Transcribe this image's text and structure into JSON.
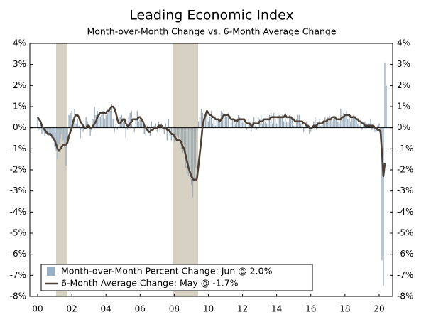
{
  "chart_data": {
    "type": "bar",
    "title": "Leading Economic Index",
    "subtitle": "Month-over-Month Change vs. 6-Month Average Change",
    "categories": [
      "00",
      null,
      null,
      null,
      null,
      null,
      null,
      null,
      null,
      null,
      null,
      null,
      null,
      null,
      null,
      null,
      null,
      null,
      null,
      null,
      null,
      null,
      null,
      null,
      "02",
      null,
      null,
      null,
      null,
      null,
      null,
      null,
      null,
      null,
      null,
      null,
      null,
      null,
      null,
      null,
      null,
      null,
      null,
      null,
      null,
      null,
      null,
      null,
      "04",
      null,
      null,
      null,
      null,
      null,
      null,
      null,
      null,
      null,
      null,
      null,
      null,
      null,
      null,
      null,
      null,
      null,
      null,
      null,
      null,
      null,
      null,
      null,
      "06",
      null,
      null,
      null,
      null,
      null,
      null,
      null,
      null,
      null,
      null,
      null,
      null,
      null,
      null,
      null,
      null,
      null,
      null,
      null,
      null,
      null,
      null,
      null,
      "08",
      null,
      null,
      null,
      null,
      null,
      null,
      null,
      null,
      null,
      null,
      null,
      null,
      null,
      null,
      null,
      null,
      null,
      null,
      null,
      null,
      null,
      null,
      null,
      "10",
      null,
      null,
      null,
      null,
      null,
      null,
      null,
      null,
      null,
      null,
      null,
      null,
      null,
      null,
      null,
      null,
      null,
      null,
      null,
      null,
      null,
      null,
      null,
      "12",
      null,
      null,
      null,
      null,
      null,
      null,
      null,
      null,
      null,
      null,
      null,
      null,
      null,
      null,
      null,
      null,
      null,
      null,
      null,
      null,
      null,
      null,
      null,
      "14",
      null,
      null,
      null,
      null,
      null,
      null,
      null,
      null,
      null,
      null,
      null,
      null,
      null,
      null,
      null,
      null,
      null,
      null,
      null,
      null,
      null,
      null,
      null,
      "16",
      null,
      null,
      null,
      null,
      null,
      null,
      null,
      null,
      null,
      null,
      null,
      null,
      null,
      null,
      null,
      null,
      null,
      null,
      null,
      null,
      null,
      null,
      null,
      "18",
      null,
      null,
      null,
      null,
      null,
      null,
      null,
      null,
      null,
      null,
      null,
      null,
      null,
      null,
      null,
      null,
      null,
      null,
      null,
      null,
      null,
      null,
      null,
      "20",
      null,
      null,
      null,
      null,
      null
    ],
    "series": [
      {
        "name": "Month-over-Month Percent Change: Jun @ 2.0%",
        "type": "bar",
        "color": "#98b0c6",
        "values": [
          0.5,
          -0.1,
          0.2,
          -0.3,
          -0.2,
          -0.4,
          -0.3,
          -0.2,
          -0.4,
          -0.3,
          -0.5,
          -0.6,
          -0.9,
          -1.1,
          -1.5,
          -0.8,
          -0.5,
          -0.3,
          -0.6,
          -0.9,
          -1.8,
          -0.5,
          0.6,
          0.7,
          0.8,
          0.4,
          0.9,
          0.2,
          0.4,
          0.1,
          -0.5,
          -0.1,
          -0.2,
          0.1,
          0.5,
          0.3,
          0.2,
          -0.4,
          -0.2,
          0.4,
          1.0,
          0.6,
          0.8,
          0.7,
          0.5,
          0.6,
          0.8,
          0.4,
          0.6,
          0.7,
          0.9,
          0.8,
          1.1,
          0.4,
          -0.2,
          0.2,
          -0.1,
          0.1,
          0.5,
          0.6,
          0.3,
          0.4,
          -0.5,
          -0.1,
          0.5,
          0.7,
          0.8,
          0.1,
          -0.2,
          0.4,
          0.8,
          0.3,
          0.4,
          0.3,
          0.2,
          -0.3,
          -0.4,
          0.1,
          -0.2,
          -0.4,
          0.3,
          -0.1,
          0.1,
          0.2,
          -0.2,
          0.3,
          -0.2,
          0.2,
          0.1,
          -0.3,
          0.2,
          -0.6,
          0.4,
          -0.4,
          -0.6,
          -0.4,
          -0.7,
          -0.6,
          -0.4,
          -0.5,
          -0.3,
          -1.0,
          -1.2,
          -0.8,
          -1.9,
          -2.2,
          -2.3,
          -1.9,
          -2.7,
          -3.3,
          -2.5,
          -1.9,
          -0.5,
          0.3,
          0.5,
          0.9,
          0.7,
          0.4,
          0.6,
          0.8,
          0.3,
          0.5,
          0.8,
          0.2,
          0.6,
          0.1,
          0.4,
          0.4,
          0.3,
          0.8,
          0.7,
          0.7,
          0.6,
          0.5,
          0.7,
          0.0,
          0.3,
          0.4,
          0.4,
          0.2,
          0.3,
          0.6,
          0.5,
          0.4,
          0.3,
          0.3,
          0.2,
          -0.1,
          0.4,
          0.2,
          -0.2,
          0.3,
          0.5,
          0.1,
          -0.1,
          0.5,
          0.4,
          0.6,
          0.2,
          0.4,
          0.3,
          0.2,
          0.5,
          0.6,
          0.7,
          0.2,
          0.7,
          0.4,
          0.2,
          0.7,
          0.6,
          0.5,
          0.6,
          0.3,
          0.7,
          0.3,
          0.3,
          0.6,
          0.4,
          0.5,
          0.1,
          0.1,
          0.4,
          0.6,
          0.6,
          0.2,
          0.2,
          -0.2,
          0.2,
          0.3,
          0.1,
          -0.3,
          -0.2,
          0.1,
          0.3,
          0.5,
          -0.1,
          0.2,
          0.4,
          0.1,
          0.2,
          0.3,
          0.5,
          0.4,
          0.5,
          0.6,
          0.4,
          0.3,
          0.4,
          0.5,
          0.4,
          0.3,
          0.2,
          0.9,
          0.5,
          0.7,
          0.6,
          0.8,
          0.4,
          0.5,
          0.3,
          0.5,
          0.6,
          0.5,
          0.4,
          0.2,
          0.1,
          0.3,
          -0.1,
          0.2,
          0.3,
          0.2,
          0.1,
          0.2,
          0.4,
          -0.1,
          0.0,
          -0.2,
          -0.2,
          0.1,
          0.2,
          -0.1,
          -6.3,
          -7.5,
          3.1,
          2.0
        ]
      },
      {
        "name": "6-Month Average Change: May @ -1.7%",
        "type": "line",
        "color": "#4d4037",
        "values": [
          0.5,
          0.4,
          0.3,
          0.1,
          0.0,
          -0.1,
          -0.2,
          -0.3,
          -0.3,
          -0.3,
          -0.4,
          -0.5,
          -0.6,
          -0.8,
          -1.0,
          -1.1,
          -1.0,
          -0.9,
          -0.8,
          -0.8,
          -0.8,
          -0.7,
          -0.4,
          -0.2,
          0.0,
          0.3,
          0.5,
          0.6,
          0.6,
          0.5,
          0.3,
          0.2,
          0.1,
          0.0,
          0.0,
          0.1,
          0.1,
          0.0,
          0.0,
          0.1,
          0.2,
          0.3,
          0.5,
          0.6,
          0.7,
          0.7,
          0.7,
          0.7,
          0.7,
          0.8,
          0.8,
          0.9,
          1.0,
          1.0,
          0.9,
          0.7,
          0.4,
          0.2,
          0.2,
          0.3,
          0.4,
          0.4,
          0.2,
          0.1,
          0.1,
          0.2,
          0.3,
          0.4,
          0.4,
          0.4,
          0.4,
          0.5,
          0.5,
          0.4,
          0.3,
          0.1,
          0.0,
          -0.1,
          -0.2,
          -0.2,
          -0.1,
          -0.1,
          0.0,
          0.0,
          0.0,
          0.1,
          0.1,
          0.1,
          0.0,
          0.0,
          0.0,
          -0.1,
          -0.1,
          -0.2,
          -0.3,
          -0.3,
          -0.4,
          -0.5,
          -0.6,
          -0.6,
          -0.6,
          -0.7,
          -0.9,
          -1.0,
          -1.3,
          -1.6,
          -1.9,
          -2.1,
          -2.3,
          -2.4,
          -2.5,
          -2.5,
          -2.4,
          -1.8,
          -1.2,
          -0.6,
          0.1,
          0.4,
          0.6,
          0.8,
          0.7,
          0.6,
          0.6,
          0.5,
          0.5,
          0.4,
          0.4,
          0.4,
          0.3,
          0.4,
          0.5,
          0.6,
          0.6,
          0.6,
          0.6,
          0.5,
          0.4,
          0.4,
          0.4,
          0.3,
          0.3,
          0.4,
          0.4,
          0.4,
          0.4,
          0.4,
          0.3,
          0.2,
          0.2,
          0.2,
          0.1,
          0.1,
          0.2,
          0.2,
          0.2,
          0.2,
          0.3,
          0.3,
          0.3,
          0.4,
          0.4,
          0.4,
          0.4,
          0.4,
          0.5,
          0.5,
          0.5,
          0.5,
          0.5,
          0.5,
          0.5,
          0.5,
          0.5,
          0.5,
          0.6,
          0.5,
          0.5,
          0.5,
          0.5,
          0.4,
          0.4,
          0.3,
          0.3,
          0.3,
          0.3,
          0.3,
          0.3,
          0.2,
          0.2,
          0.1,
          0.1,
          0.0,
          0.0,
          0.0,
          0.1,
          0.1,
          0.1,
          0.2,
          0.2,
          0.2,
          0.2,
          0.3,
          0.3,
          0.3,
          0.4,
          0.4,
          0.4,
          0.5,
          0.5,
          0.5,
          0.4,
          0.4,
          0.4,
          0.4,
          0.5,
          0.5,
          0.6,
          0.6,
          0.6,
          0.6,
          0.5,
          0.5,
          0.5,
          0.5,
          0.4,
          0.4,
          0.3,
          0.3,
          0.2,
          0.2,
          0.1,
          0.1,
          0.1,
          0.1,
          0.1,
          0.1,
          0.1,
          0.0,
          0.0,
          -0.1,
          -0.1,
          -0.2,
          -1.2,
          -2.3,
          -1.7,
          null
        ]
      }
    ],
    "ylim": [
      -8,
      4
    ],
    "yticks": [
      {
        "value": -8,
        "label": "-8%"
      },
      {
        "value": -7,
        "label": "-7%"
      },
      {
        "value": -6,
        "label": "-6%"
      },
      {
        "value": -5,
        "label": "-5%"
      },
      {
        "value": -4,
        "label": "-4%"
      },
      {
        "value": -3,
        "label": "-3%"
      },
      {
        "value": -2,
        "label": "-2%"
      },
      {
        "value": -1,
        "label": "-1%"
      },
      {
        "value": 0,
        "label": "0%"
      },
      {
        "value": 1,
        "label": "1%"
      },
      {
        "value": 2,
        "label": "2%"
      },
      {
        "value": 3,
        "label": "3%"
      },
      {
        "value": 4,
        "label": "4%"
      }
    ],
    "legend": "lower left"
  }
}
